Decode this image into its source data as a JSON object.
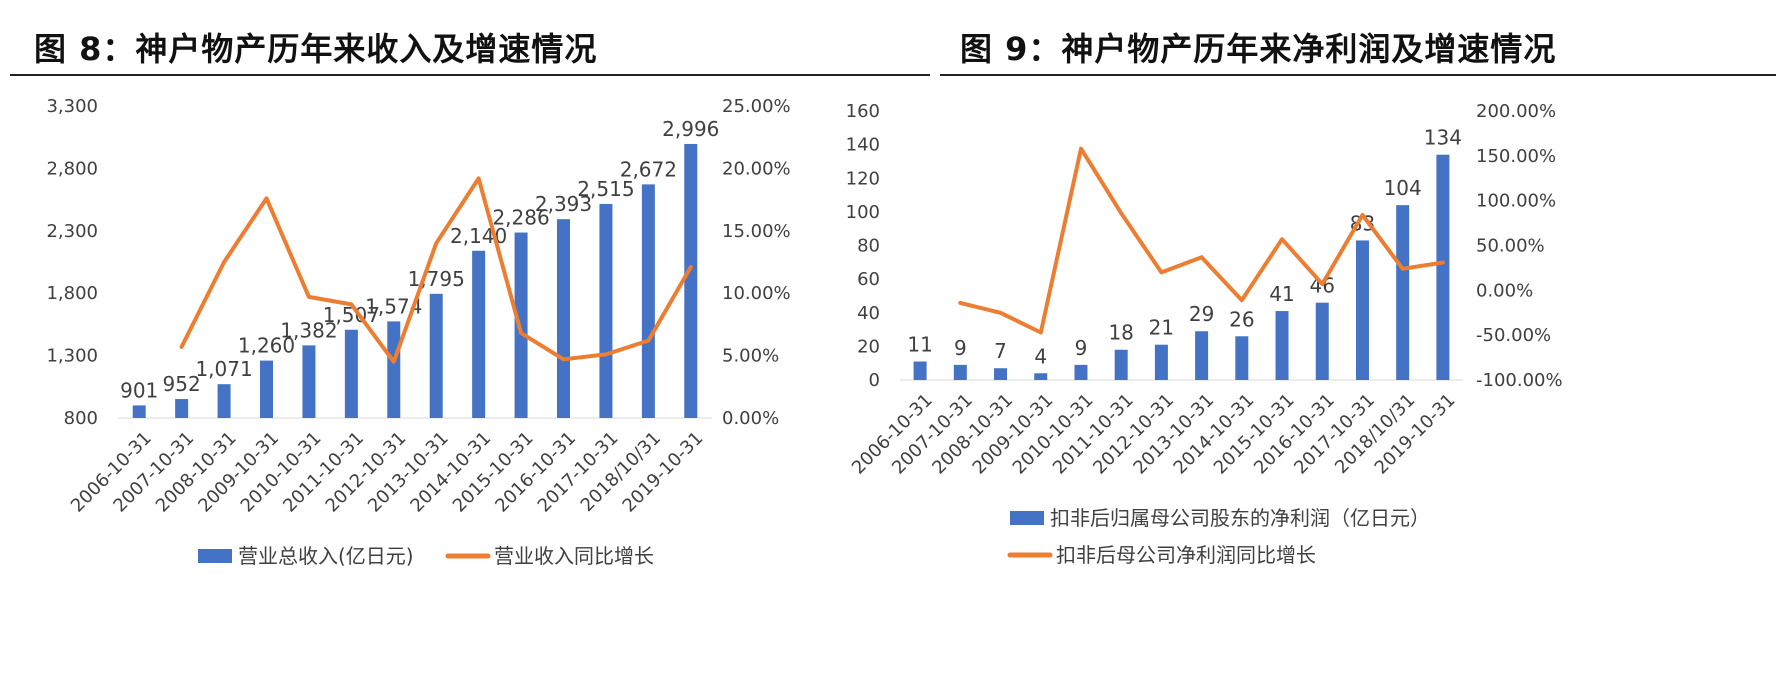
{
  "chart_data": [
    {
      "type": "bar",
      "title": "图 8：神户物产历年来收入及增速情况",
      "categories": [
        "2006-10-31",
        "2007-10-31",
        "2008-10-31",
        "2009-10-31",
        "2010-10-31",
        "2011-10-31",
        "2012-10-31",
        "2013-10-31",
        "2014-10-31",
        "2015-10-31",
        "2016-10-31",
        "2017-10-31",
        "2018/10/31",
        "2019-10-31"
      ],
      "series": [
        {
          "name": "营业总收入(亿日元)",
          "kind": "bar",
          "axis": "left",
          "color": "#4472C4",
          "values": [
            901,
            952,
            1071,
            1260,
            1382,
            1507,
            1574,
            1795,
            2140,
            2286,
            2393,
            2515,
            2672,
            2996
          ],
          "labels": [
            "901",
            "952",
            "1,071",
            "1,260",
            "1,382",
            "1,507",
            "1,574",
            "1,795",
            "2,140",
            "2,286",
            "2,393",
            "2,515",
            "2,672",
            "2,996"
          ]
        },
        {
          "name": "营业收入同比增长",
          "kind": "line",
          "axis": "right",
          "color": "#ED7D31",
          "values": [
            null,
            5.7,
            12.5,
            17.6,
            9.7,
            9.1,
            4.5,
            14.0,
            19.2,
            6.8,
            4.7,
            5.1,
            6.2,
            12.1
          ]
        }
      ],
      "yleft": {
        "min": 800,
        "max": 3300,
        "ticks": [
          "800",
          "1,300",
          "1,800",
          "2,300",
          "2,800",
          "3,300"
        ]
      },
      "yright": {
        "min": 0,
        "max": 25,
        "ticks": [
          "0.00%",
          "5.00%",
          "10.00%",
          "15.00%",
          "20.00%",
          "25.00%"
        ]
      }
    },
    {
      "type": "bar",
      "title": "图 9：神户物产历年来净利润及增速情况",
      "categories": [
        "2006-10-31",
        "2007-10-31",
        "2008-10-31",
        "2009-10-31",
        "2010-10-31",
        "2011-10-31",
        "2012-10-31",
        "2013-10-31",
        "2014-10-31",
        "2015-10-31",
        "2016-10-31",
        "2017-10-31",
        "2018/10/31",
        "2019-10-31"
      ],
      "series": [
        {
          "name": "扣非后归属母公司股东的净利润（亿日元）",
          "kind": "bar",
          "axis": "left",
          "color": "#4472C4",
          "values": [
            11,
            9,
            7,
            4,
            9,
            18,
            21,
            29,
            26,
            41,
            46,
            83,
            104,
            134
          ],
          "labels": [
            "11",
            "9",
            "7",
            "4",
            "9",
            "18",
            "21",
            "29",
            "26",
            "41",
            "46",
            "83",
            "104",
            "134"
          ]
        },
        {
          "name": "扣非后母公司净利润同比增长",
          "kind": "line",
          "axis": "right",
          "color": "#ED7D31",
          "values": [
            null,
            -14,
            -25,
            -47,
            158,
            86,
            20,
            37,
            -11,
            57,
            7,
            84,
            24,
            31
          ]
        }
      ],
      "yleft": {
        "min": 0,
        "max": 160,
        "ticks": [
          "0",
          "20",
          "40",
          "60",
          "80",
          "100",
          "120",
          "140",
          "160"
        ]
      },
      "yright": {
        "min": -100,
        "max": 200,
        "ticks": [
          "-100.00%",
          "-50.00%",
          "0.00%",
          "50.00%",
          "100.00%",
          "150.00%",
          "200.00%"
        ]
      }
    }
  ]
}
